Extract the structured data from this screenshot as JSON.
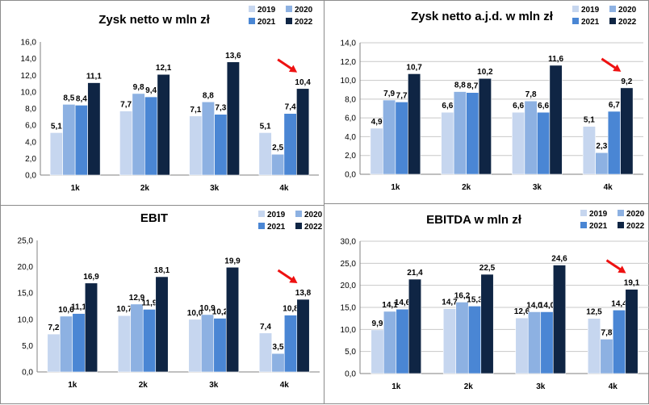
{
  "colors": {
    "series": [
      "#c6d6ef",
      "#8db1e2",
      "#4a86d4",
      "#0f2544"
    ],
    "arrow": "#ee1111",
    "grid": "#c8c8c8"
  },
  "chart_data": [
    {
      "type": "bar",
      "title": "Zysk netto w mln zł",
      "categories": [
        "1k",
        "2k",
        "3k",
        "4k"
      ],
      "ylim": [
        0,
        16
      ],
      "ytick_step": 2,
      "ytick_labels": [
        "0,0",
        "2,0",
        "4,0",
        "6,0",
        "8,0",
        "10,0",
        "12,0",
        "14,0",
        "16,0"
      ],
      "series": [
        {
          "name": "2019",
          "values": [
            5.1,
            7.7,
            7.1,
            5.1
          ],
          "labels": [
            "5,1",
            "7,7",
            "7,1",
            "5,1"
          ]
        },
        {
          "name": "2020",
          "values": [
            8.5,
            9.8,
            8.8,
            2.5
          ],
          "labels": [
            "8,5",
            "9,8",
            "8,8",
            "2,5"
          ]
        },
        {
          "name": "2021",
          "values": [
            8.4,
            9.4,
            7.3,
            7.4
          ],
          "labels": [
            "8,4",
            "9,4",
            "7,3",
            "7,4"
          ]
        },
        {
          "name": "2022",
          "values": [
            11.1,
            12.1,
            13.6,
            10.4
          ],
          "labels": [
            "11,1",
            "12,1",
            "13,6",
            "10,4"
          ]
        }
      ],
      "grid": false,
      "legend": "top-right",
      "annotation": "red arrow pointing to 4k 2022 bar"
    },
    {
      "type": "bar",
      "title": "Zysk netto a.j.d. w mln zł",
      "categories": [
        "1k",
        "2k",
        "3k",
        "4k"
      ],
      "ylim": [
        0,
        14
      ],
      "ytick_step": 2,
      "ytick_labels": [
        "0,0",
        "2,0",
        "4,0",
        "6,0",
        "8,0",
        "10,0",
        "12,0",
        "14,0"
      ],
      "series": [
        {
          "name": "2019",
          "values": [
            4.9,
            6.6,
            6.6,
            5.1
          ],
          "labels": [
            "4,9",
            "6,6",
            "6,6",
            "5,1"
          ]
        },
        {
          "name": "2020",
          "values": [
            7.9,
            8.8,
            7.8,
            2.3
          ],
          "labels": [
            "7,9",
            "8,8",
            "7,8",
            "2,3"
          ]
        },
        {
          "name": "2021",
          "values": [
            7.7,
            8.7,
            6.6,
            6.7
          ],
          "labels": [
            "7,7",
            "8,7",
            "6,6",
            "6,7"
          ]
        },
        {
          "name": "2022",
          "values": [
            10.7,
            10.2,
            11.6,
            9.2
          ],
          "labels": [
            "10,7",
            "10,2",
            "11,6",
            "9,2"
          ]
        }
      ],
      "grid": true,
      "legend": "top-right",
      "annotation": "red arrow pointing to 4k 2022 bar"
    },
    {
      "type": "bar",
      "title": "EBIT",
      "categories": [
        "1k",
        "2k",
        "3k",
        "4k"
      ],
      "ylim": [
        0,
        25
      ],
      "ytick_step": 5,
      "ytick_labels": [
        "0,0",
        "5,0",
        "10,0",
        "15,0",
        "20,0",
        "25,0"
      ],
      "series": [
        {
          "name": "2019",
          "values": [
            7.2,
            10.7,
            10.0,
            7.4
          ],
          "labels": [
            "7,2",
            "10,7",
            "10,0",
            "7,4"
          ]
        },
        {
          "name": "2020",
          "values": [
            10.6,
            12.9,
            10.9,
            3.5
          ],
          "labels": [
            "10,6",
            "12,9",
            "10,9",
            "3,5"
          ]
        },
        {
          "name": "2021",
          "values": [
            11.1,
            11.9,
            10.2,
            10.8
          ],
          "labels": [
            "11,1",
            "11,9",
            "10,2",
            "10,8"
          ]
        },
        {
          "name": "2022",
          "values": [
            16.9,
            18.1,
            19.9,
            13.8
          ],
          "labels": [
            "16,9",
            "18,1",
            "19,9",
            "13,8"
          ]
        }
      ],
      "grid": false,
      "legend": "top-right",
      "annotation": "red arrow pointing to 4k 2022 bar"
    },
    {
      "type": "bar",
      "title": "EBITDA w mln zł",
      "categories": [
        "1k",
        "2k",
        "3k",
        "4k"
      ],
      "ylim": [
        0,
        30
      ],
      "ytick_step": 5,
      "ytick_labels": [
        "0,0",
        "5,0",
        "10,0",
        "15,0",
        "20,0",
        "25,0",
        "30,0"
      ],
      "series": [
        {
          "name": "2019",
          "values": [
            9.9,
            14.7,
            12.6,
            12.5
          ],
          "labels": [
            "9,9",
            "14,7",
            "12,6",
            "12,5"
          ]
        },
        {
          "name": "2020",
          "values": [
            14.1,
            16.2,
            14.0,
            7.8
          ],
          "labels": [
            "14,1",
            "16,2",
            "14,0",
            "7,8"
          ]
        },
        {
          "name": "2021",
          "values": [
            14.6,
            15.3,
            14.0,
            14.4
          ],
          "labels": [
            "14,6",
            "15,3",
            "14,0",
            "14,4"
          ]
        },
        {
          "name": "2022",
          "values": [
            21.4,
            22.5,
            24.6,
            19.1
          ],
          "labels": [
            "21,4",
            "22,5",
            "24,6",
            "19,1"
          ]
        }
      ],
      "grid": true,
      "legend": "top-right",
      "annotation": "red arrow pointing to 4k 2022 bar"
    }
  ]
}
